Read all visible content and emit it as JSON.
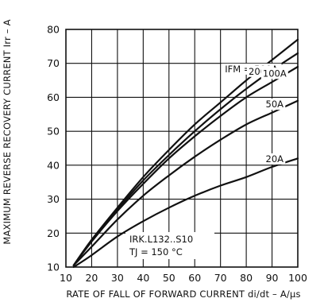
{
  "chart_data": {
    "type": "line",
    "title": "",
    "xlabel": "RATE OF FALL OF FORWARD CURRENT di/dt – A/µs",
    "ylabel": "MAXIMUM REVERSE RECOVERY CURRENT Irr – A",
    "xlim": [
      10,
      100
    ],
    "ylim": [
      10,
      80
    ],
    "grid": true,
    "x_ticks": [
      "10",
      "20",
      "30",
      "40",
      "50",
      "60",
      "70",
      "80",
      "90",
      "100"
    ],
    "y_ticks": [
      "10",
      "20",
      "30",
      "40",
      "50",
      "60",
      "70",
      "80"
    ],
    "annotations": {
      "device": "IRK.L132..S10",
      "temperature": "TJ = 150 °C"
    },
    "series": [
      {
        "name": "IFM = 500A",
        "label_x": 82,
        "x": [
          13,
          20,
          30,
          40,
          50,
          60,
          70,
          80,
          90,
          100
        ],
        "y": [
          10.5,
          18,
          27.5,
          36.5,
          44.5,
          52,
          58.5,
          65,
          71,
          77
        ]
      },
      {
        "name": "200A",
        "label_x": 85.5,
        "x": [
          13,
          20,
          30,
          40,
          50,
          60,
          70,
          80,
          90,
          100
        ],
        "y": [
          10.5,
          18,
          27,
          35.5,
          43,
          50,
          56.5,
          62.5,
          68,
          73
        ]
      },
      {
        "name": "100A",
        "label_x": 91,
        "x": [
          13,
          20,
          30,
          40,
          50,
          60,
          70,
          80,
          90,
          100
        ],
        "y": [
          10.5,
          17.5,
          26.5,
          34.5,
          42,
          48.5,
          54.5,
          60,
          64.5,
          69
        ]
      },
      {
        "name": "50A",
        "label_x": 91,
        "x": [
          13,
          20,
          30,
          40,
          50,
          60,
          70,
          80,
          90,
          100
        ],
        "y": [
          10.5,
          16,
          24,
          31,
          37,
          42.5,
          47.5,
          52,
          55.5,
          59
        ]
      },
      {
        "name": "20A",
        "label_x": 91,
        "x": [
          13,
          20,
          30,
          40,
          50,
          60,
          70,
          80,
          90,
          100
        ],
        "y": [
          10,
          13.5,
          19,
          23.5,
          27.5,
          31,
          34,
          36.5,
          39.5,
          42
        ]
      }
    ]
  }
}
